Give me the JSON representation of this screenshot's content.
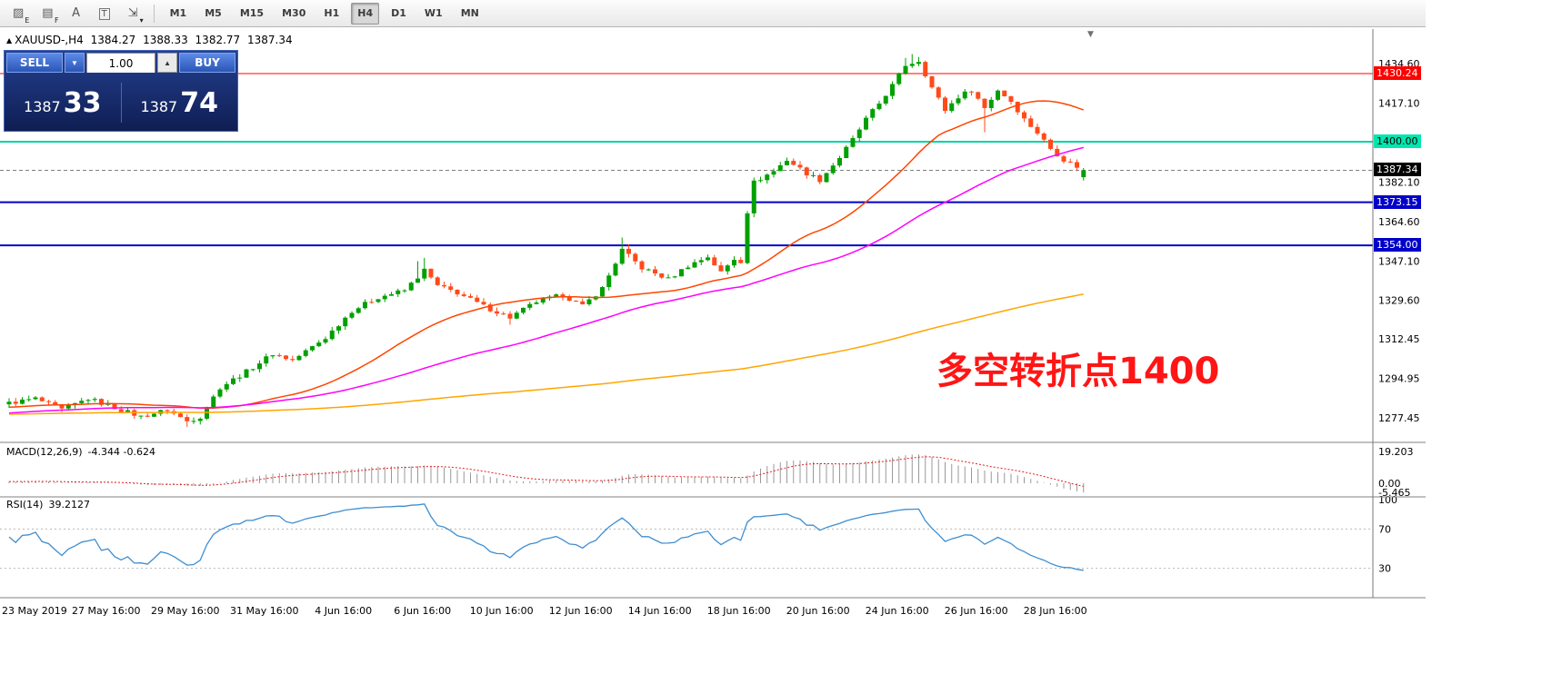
{
  "window": {
    "bg": "#ffffff",
    "content_width": 1568
  },
  "toolbar": {
    "icons": [
      {
        "name": "hatch-pattern-icon",
        "glyph": "▨",
        "sub": "E"
      },
      {
        "name": "list-pattern-icon",
        "glyph": "▤",
        "sub": "F"
      },
      {
        "name": "font-icon",
        "glyph": "A",
        "sub": ""
      },
      {
        "name": "text-label-icon",
        "glyph": "T",
        "sub": "",
        "boxed": true
      },
      {
        "name": "cursor-tool-icon",
        "glyph": "⇲",
        "sub": "▾"
      }
    ],
    "timeframes": [
      "M1",
      "M5",
      "M15",
      "M30",
      "H1",
      "H4",
      "D1",
      "W1",
      "MN"
    ],
    "active_timeframe": "H4"
  },
  "chart": {
    "header": {
      "marker": "▲",
      "symbol": "XAUUSD-,H4",
      "open": "1384.27",
      "high": "1388.33",
      "low": "1382.77",
      "close": "1387.34"
    },
    "trade_panel": {
      "sell_label": "SELL",
      "buy_label": "BUY",
      "volume": "1.00",
      "spinner_down": "▼",
      "spinner_up": "▲",
      "sell_price_main": "1387",
      "sell_price_pips": "33",
      "buy_price_main": "1387",
      "buy_price_pips": "74"
    },
    "annotation": {
      "text": "多空转折点1400",
      "color": "#ff1515"
    },
    "shift_marker": "▼"
  },
  "chart_data": {
    "type": "candlestick",
    "symbol": "XAUUSD-",
    "timeframe": "H4",
    "title": "XAUUSD-,H4",
    "last_bar": {
      "open": 1384.27,
      "high": 1388.33,
      "low": 1382.77,
      "close": 1387.34
    },
    "ylim": [
      1267,
      1450
    ],
    "y_ticks": [
      {
        "label": "1434.60",
        "price": 1434.6
      },
      {
        "label": "1417.10",
        "price": 1417.1
      },
      {
        "label": "1382.10",
        "price": 1382.1
      },
      {
        "label": "1364.60",
        "price": 1364.6
      },
      {
        "label": "1347.10",
        "price": 1347.1
      },
      {
        "label": "1329.60",
        "price": 1329.6
      },
      {
        "label": "1312.45",
        "price": 1312.45
      },
      {
        "label": "1294.95",
        "price": 1294.95
      },
      {
        "label": "1277.45",
        "price": 1277.45
      }
    ],
    "x_labels": [
      {
        "label": "23 May 2019",
        "index": 3
      },
      {
        "label": "27 May 16:00",
        "index": 15
      },
      {
        "label": "29 May 16:00",
        "index": 27
      },
      {
        "label": "31 May 16:00",
        "index": 39
      },
      {
        "label": "4 Jun 16:00",
        "index": 51
      },
      {
        "label": "6 Jun 16:00",
        "index": 63
      },
      {
        "label": "10 Jun 16:00",
        "index": 75
      },
      {
        "label": "12 Jun 16:00",
        "index": 87
      },
      {
        "label": "14 Jun 16:00",
        "index": 99
      },
      {
        "label": "18 Jun 16:00",
        "index": 111
      },
      {
        "label": "20 Jun 16:00",
        "index": 123
      },
      {
        "label": "24 Jun 16:00",
        "index": 135
      },
      {
        "label": "26 Jun 16:00",
        "index": 147
      },
      {
        "label": "28 Jun 16:00",
        "index": 159
      }
    ],
    "hlines": [
      {
        "price": 1430.24,
        "label": "1430.24",
        "color": "#ff0000",
        "width": 1,
        "badge_bg": "#ff0000",
        "badge_fg": "#ffffff"
      },
      {
        "price": 1400.0,
        "label": "1400.00",
        "color": "#00d2a0",
        "width": 2,
        "badge_bg": "#00e6ae",
        "badge_fg": "#000000"
      },
      {
        "price": 1373.15,
        "label": "1373.15",
        "color": "#0000c8",
        "width": 2,
        "badge_bg": "#0000c8",
        "badge_fg": "#ffffff"
      },
      {
        "price": 1354.0,
        "label": "1354.00",
        "color": "#0000c8",
        "width": 2,
        "badge_bg": "#0000c8",
        "badge_fg": "#ffffff"
      }
    ],
    "bid": {
      "price": 1387.34,
      "label": "1387.34",
      "line_color": "#808080",
      "badge_bg": "#000000",
      "badge_fg": "#ffffff"
    },
    "candles": {
      "count": 164,
      "up_color": "#00a000",
      "down_color": "#ff4a1a",
      "jitter": 1.0,
      "waypoints": [
        [
          -220,
          1271
        ],
        [
          -180,
          1277
        ],
        [
          -150,
          1282
        ],
        [
          -120,
          1276
        ],
        [
          -90,
          1284
        ],
        [
          -60,
          1274
        ],
        [
          -30,
          1280
        ],
        [
          -10,
          1283
        ],
        [
          0,
          1284
        ],
        [
          4,
          1286
        ],
        [
          8,
          1281
        ],
        [
          12,
          1286
        ],
        [
          16,
          1282
        ],
        [
          20,
          1278
        ],
        [
          24,
          1281
        ],
        [
          27,
          1276
        ],
        [
          29,
          1278
        ],
        [
          32,
          1291
        ],
        [
          36,
          1298
        ],
        [
          40,
          1306
        ],
        [
          43,
          1303
        ],
        [
          46,
          1309
        ],
        [
          48,
          1313
        ],
        [
          52,
          1325
        ],
        [
          56,
          1331
        ],
        [
          60,
          1334
        ],
        [
          63,
          1343
        ],
        [
          65,
          1336
        ],
        [
          68,
          1333
        ],
        [
          72,
          1327
        ],
        [
          76,
          1322
        ],
        [
          80,
          1329
        ],
        [
          84,
          1332
        ],
        [
          87,
          1327
        ],
        [
          90,
          1335
        ],
        [
          93,
          1352
        ],
        [
          96,
          1344
        ],
        [
          100,
          1339
        ],
        [
          103,
          1345
        ],
        [
          106,
          1349
        ],
        [
          108,
          1342
        ],
        [
          110,
          1348
        ],
        [
          111,
          1347
        ],
        [
          112,
          1369
        ],
        [
          113,
          1382
        ],
        [
          116,
          1387
        ],
        [
          118,
          1392
        ],
        [
          121,
          1386
        ],
        [
          123,
          1383
        ],
        [
          126,
          1393
        ],
        [
          128,
          1401
        ],
        [
          130,
          1410
        ],
        [
          132,
          1417
        ],
        [
          134,
          1425
        ],
        [
          136,
          1434
        ],
        [
          138,
          1436
        ],
        [
          140,
          1424
        ],
        [
          142,
          1414
        ],
        [
          144,
          1420
        ],
        [
          146,
          1423
        ],
        [
          148,
          1415
        ],
        [
          150,
          1423
        ],
        [
          152,
          1418
        ],
        [
          154,
          1410
        ],
        [
          156,
          1404
        ],
        [
          158,
          1397
        ],
        [
          160,
          1392
        ],
        [
          162,
          1389
        ],
        [
          163,
          1387
        ]
      ],
      "wick_overrides": {
        "27": {
          "l": 1273.5
        },
        "62": {
          "h": 1347.0
        },
        "63": {
          "h": 1348.5
        },
        "76": {
          "l": 1318.8
        },
        "93": {
          "h": 1357.5
        },
        "94": {
          "h": 1354.5
        },
        "136": {
          "h": 1437.2
        },
        "137": {
          "h": 1438.9
        },
        "138": {
          "h": 1437.6
        },
        "148": {
          "l": 1404.2
        }
      },
      "last_override": {
        "163": {
          "o": 1384.27,
          "h": 1388.33,
          "l": 1382.77,
          "c": 1387.34
        }
      }
    },
    "mas": [
      {
        "period": 30,
        "color": "#ff4500"
      },
      {
        "period": 60,
        "color": "#ff00ff"
      },
      {
        "period": 200,
        "color": "#ffa500"
      }
    ],
    "macd": {
      "label": "MACD(12,26,9)",
      "value_text": "-4.344 -0.624",
      "fast": 12,
      "slow": 26,
      "signal": 9,
      "hist_color": "#999999",
      "signal_color": "#e02020",
      "y_ticks": [
        {
          "label": "19.203",
          "v": 19.203
        },
        {
          "label": "0.00",
          "v": 0
        },
        {
          "label": "-5.465",
          "v": -5.465
        }
      ]
    },
    "rsi": {
      "label": "RSI(14)",
      "value_text": "39.2127",
      "period": 14,
      "line_color": "#3e8ed0",
      "levels": [
        70,
        30
      ],
      "y_ticks": [
        {
          "label": "100",
          "v": 100
        },
        {
          "label": "70",
          "v": 70
        },
        {
          "label": "30",
          "v": 30
        }
      ]
    }
  }
}
